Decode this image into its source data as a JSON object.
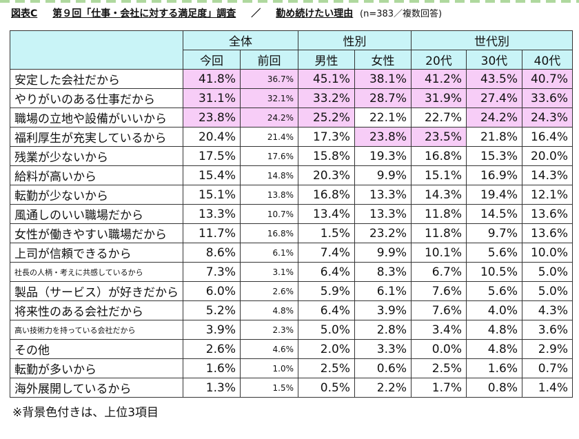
{
  "title": {
    "figure_label": "図表C",
    "main": "第９回「仕事・会社に対する満足度」調査",
    "separator": "／",
    "sub": "勤め続けたい理由",
    "note": "(n=383／複数回答)"
  },
  "chart_data": {
    "type": "table",
    "column_groups": [
      {
        "label": "全体",
        "span": 2
      },
      {
        "label": "性別",
        "span": 2
      },
      {
        "label": "世代別",
        "span": 3
      }
    ],
    "columns": [
      "今回",
      "前回",
      "男性",
      "女性",
      "20代",
      "30代",
      "40代"
    ],
    "unit": "%",
    "rows": [
      {
        "label": "安定した会社だから",
        "values": [
          41.8,
          36.7,
          45.1,
          38.1,
          41.2,
          43.5,
          40.7
        ],
        "highlight": [
          true,
          true,
          true,
          true,
          true,
          true,
          true
        ]
      },
      {
        "label": "やりがいのある仕事だから",
        "values": [
          31.1,
          32.1,
          33.2,
          28.7,
          31.9,
          27.4,
          33.6
        ],
        "highlight": [
          true,
          true,
          true,
          true,
          true,
          true,
          true
        ]
      },
      {
        "label": "職場の立地や設備がいいから",
        "values": [
          23.8,
          24.2,
          25.2,
          22.1,
          22.7,
          24.2,
          24.3
        ],
        "highlight": [
          true,
          true,
          true,
          false,
          false,
          true,
          true
        ]
      },
      {
        "label": "福利厚生が充実しているから",
        "values": [
          20.4,
          21.4,
          17.3,
          23.8,
          23.5,
          21.8,
          16.4
        ],
        "highlight": [
          false,
          false,
          false,
          true,
          true,
          false,
          false
        ]
      },
      {
        "label": "残業が少ないから",
        "values": [
          17.5,
          17.6,
          15.8,
          19.3,
          16.8,
          15.3,
          20.0
        ],
        "highlight": [
          false,
          false,
          false,
          false,
          false,
          false,
          false
        ]
      },
      {
        "label": "給料が高いから",
        "values": [
          15.4,
          14.8,
          20.3,
          9.9,
          15.1,
          16.9,
          14.3
        ],
        "highlight": [
          false,
          false,
          false,
          false,
          false,
          false,
          false
        ]
      },
      {
        "label": "転勤が少ないから",
        "values": [
          15.1,
          13.8,
          16.8,
          13.3,
          14.3,
          19.4,
          12.1
        ],
        "highlight": [
          false,
          false,
          false,
          false,
          false,
          false,
          false
        ]
      },
      {
        "label": "風通しのいい職場だから",
        "values": [
          13.3,
          10.7,
          13.4,
          13.3,
          11.8,
          14.5,
          13.6
        ],
        "highlight": [
          false,
          false,
          false,
          false,
          false,
          false,
          false
        ]
      },
      {
        "label": "女性が働きやすい職場だから",
        "values": [
          11.7,
          16.8,
          1.5,
          23.2,
          11.8,
          9.7,
          13.6
        ],
        "highlight": [
          false,
          false,
          false,
          false,
          false,
          false,
          false
        ]
      },
      {
        "label": "上司が信頼できるから",
        "values": [
          8.6,
          6.1,
          7.4,
          9.9,
          10.1,
          5.6,
          10.0
        ],
        "highlight": [
          false,
          false,
          false,
          false,
          false,
          false,
          false
        ]
      },
      {
        "label": "社長の人柄・考えに共感しているから",
        "values": [
          7.3,
          3.1,
          6.4,
          8.3,
          6.7,
          10.5,
          5.0
        ],
        "highlight": [
          false,
          false,
          false,
          false,
          false,
          false,
          false
        ],
        "small": true
      },
      {
        "label": "製品（サービス）が好きだから",
        "values": [
          6.0,
          2.6,
          5.9,
          6.1,
          7.6,
          5.6,
          5.0
        ],
        "highlight": [
          false,
          false,
          false,
          false,
          false,
          false,
          false
        ]
      },
      {
        "label": "将来性のある会社だから",
        "values": [
          5.2,
          4.8,
          6.4,
          3.9,
          7.6,
          4.0,
          4.3
        ],
        "highlight": [
          false,
          false,
          false,
          false,
          false,
          false,
          false
        ]
      },
      {
        "label": "高い技術力を持っている会社だから",
        "values": [
          3.9,
          2.3,
          5.0,
          2.8,
          3.4,
          4.8,
          3.6
        ],
        "highlight": [
          false,
          false,
          false,
          false,
          false,
          false,
          false
        ],
        "small": true
      },
      {
        "label": "その他",
        "values": [
          2.6,
          4.6,
          2.0,
          3.3,
          0.0,
          4.8,
          2.9
        ],
        "highlight": [
          false,
          false,
          false,
          false,
          false,
          false,
          false
        ]
      },
      {
        "label": "転勤が多いから",
        "values": [
          1.6,
          1.0,
          2.5,
          0.6,
          2.5,
          1.6,
          0.7
        ],
        "highlight": [
          false,
          false,
          false,
          false,
          false,
          false,
          false
        ]
      },
      {
        "label": "海外展開しているから",
        "values": [
          1.3,
          1.5,
          0.5,
          2.2,
          1.7,
          0.8,
          1.4
        ],
        "highlight": [
          false,
          false,
          false,
          false,
          false,
          false,
          false
        ]
      }
    ]
  },
  "colors": {
    "header_bg": "#c9f4f7",
    "highlight_bg": "#f7cdf7"
  },
  "footnote": "※背景色付きは、上位3項目"
}
